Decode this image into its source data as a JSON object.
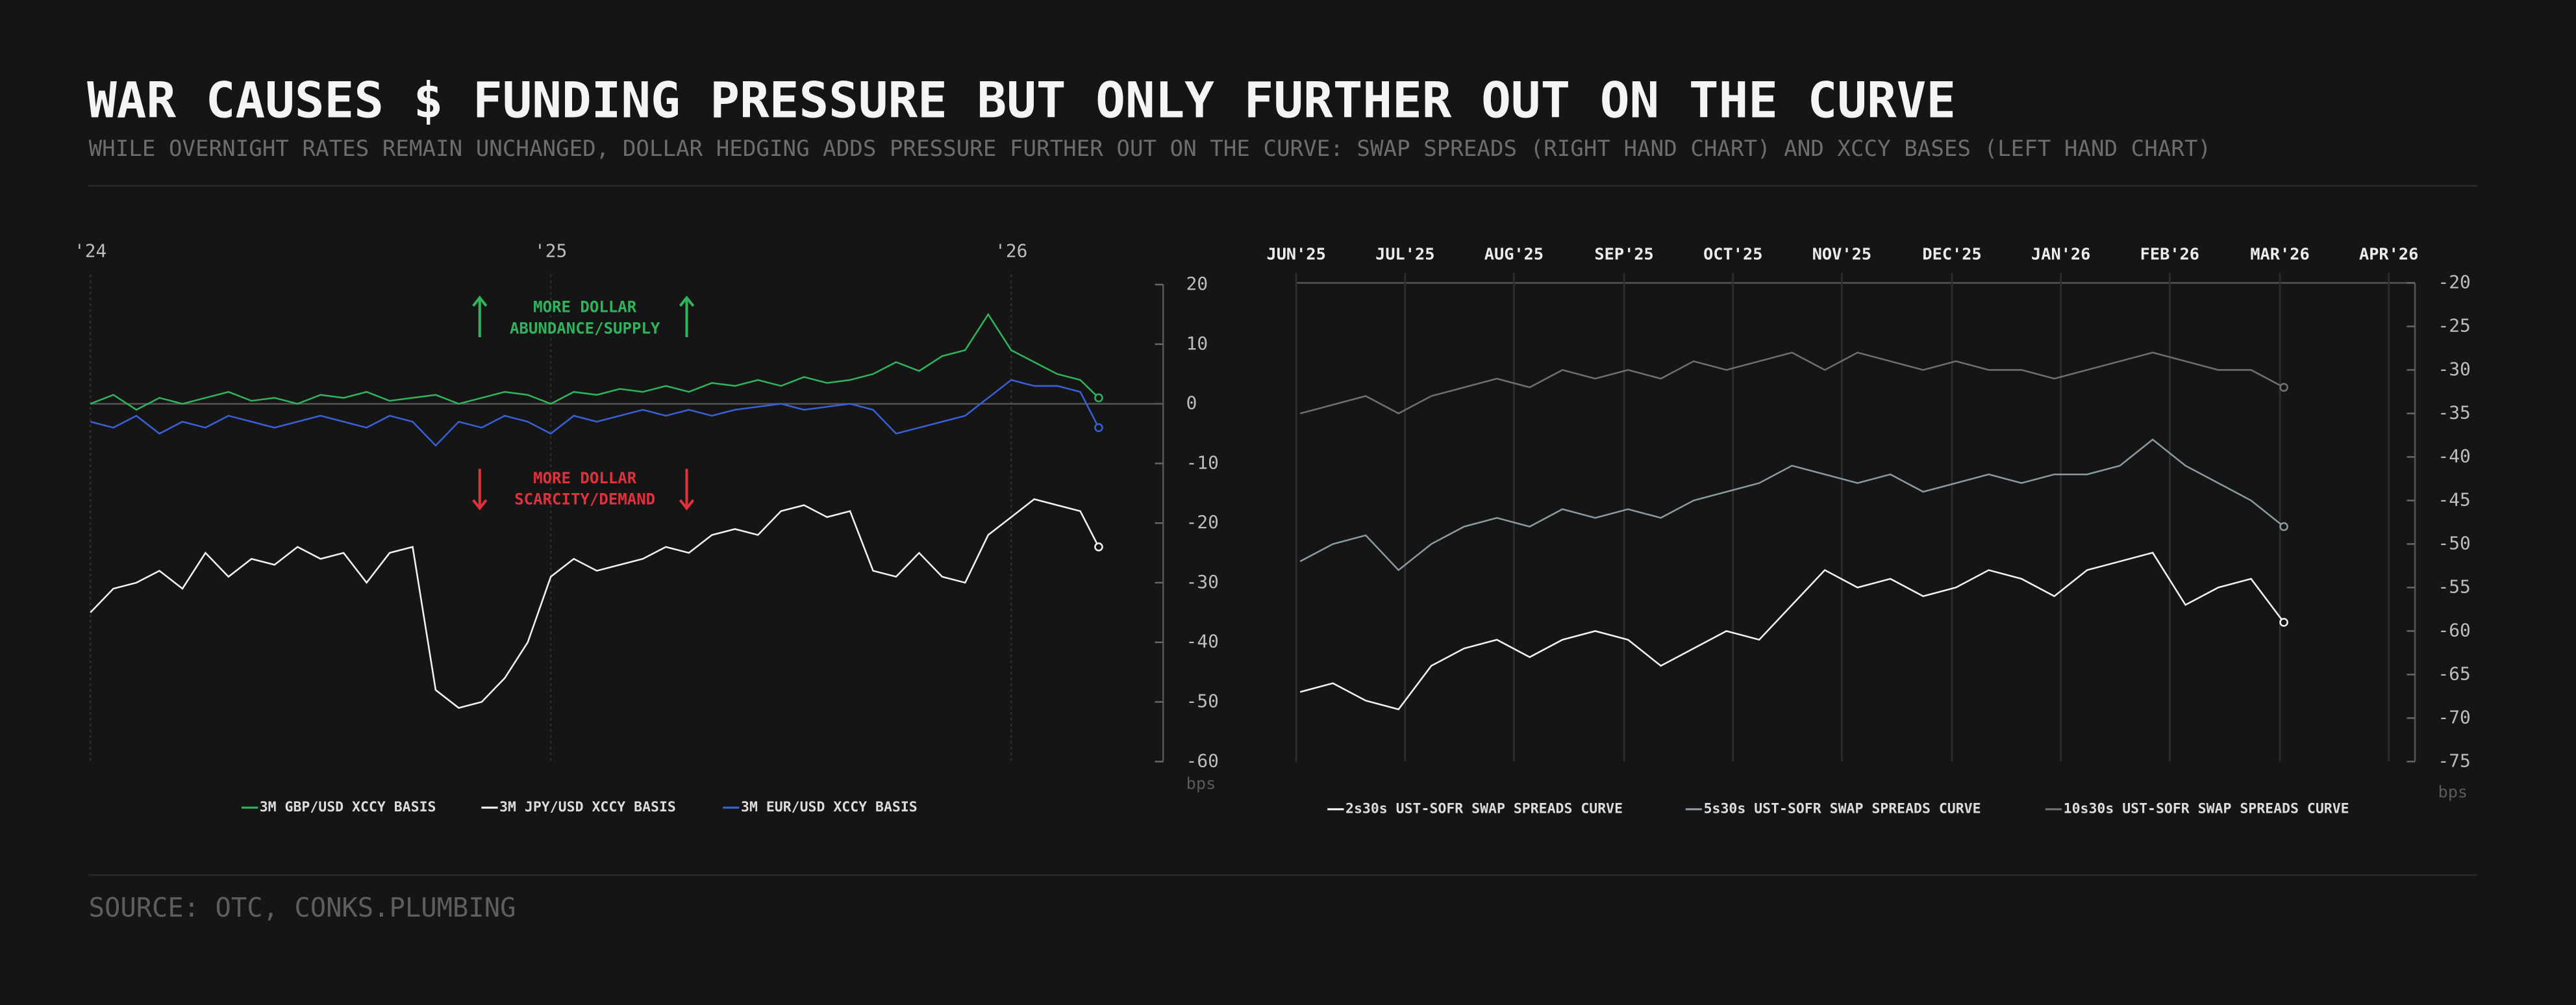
{
  "title": "WAR CAUSES $ FUNDING PRESSURE BUT ONLY FURTHER OUT ON THE CURVE",
  "subtitle": "WHILE OVERNIGHT RATES REMAIN UNCHANGED, DOLLAR HEDGING ADDS PRESSURE FURTHER OUT ON THE CURVE: SWAP SPREADS (RIGHT HAND CHART) AND XCCY BASES (LEFT HAND CHART)",
  "source": "SOURCE: OTC, CONKS.PLUMBING",
  "chart_data": [
    {
      "type": "line",
      "y_unit": "bps",
      "xlim": [
        2024,
        2026.33
      ],
      "xticks": [
        {
          "value": 2024,
          "label": "'24"
        },
        {
          "value": 2025,
          "label": "'25"
        },
        {
          "value": 2026,
          "label": "'26"
        }
      ],
      "ylim": [
        -60,
        20
      ],
      "yticks": [
        20,
        10,
        0,
        -10,
        -20,
        -30,
        -40,
        -50,
        -60
      ],
      "annotations": [
        {
          "text": [
            "MORE DOLLAR",
            "ABUNDANCE/SUPPLY"
          ],
          "color": "#2fb35c"
        },
        {
          "text": [
            "MORE DOLLAR",
            "SCARCITY/DEMAND"
          ],
          "color": "#e0323c"
        }
      ],
      "x": [
        2024.0,
        2024.05,
        2024.1,
        2024.15,
        2024.2,
        2024.25,
        2024.3,
        2024.35,
        2024.4,
        2024.45,
        2024.5,
        2024.55,
        2024.6,
        2024.65,
        2024.7,
        2024.75,
        2024.8,
        2024.85,
        2024.9,
        2024.95,
        2025.0,
        2025.05,
        2025.1,
        2025.15,
        2025.2,
        2025.25,
        2025.3,
        2025.35,
        2025.4,
        2025.45,
        2025.5,
        2025.55,
        2025.6,
        2025.65,
        2025.7,
        2025.75,
        2025.8,
        2025.85,
        2025.9,
        2025.95,
        2026.0,
        2026.05,
        2026.1,
        2026.15,
        2026.19
      ],
      "series": [
        {
          "name": "3M GBP/USD XCCY BASIS",
          "color": "#2fb35c",
          "values": [
            0,
            1.5,
            -1,
            1,
            0,
            1,
            2,
            0.5,
            1,
            0,
            1.5,
            1,
            2,
            0.5,
            1,
            1.5,
            0,
            1,
            2,
            1.5,
            0,
            2,
            1.5,
            2.5,
            2,
            3,
            2,
            3.5,
            3,
            4,
            3,
            4.5,
            3.5,
            4,
            5,
            7,
            5.5,
            8,
            9,
            15,
            9,
            7,
            5,
            4,
            1
          ]
        },
        {
          "name": "3M JPY/USD XCCY BASIS",
          "color": "#f2f2f2",
          "values": [
            -35,
            -31,
            -30,
            -28,
            -31,
            -25,
            -29,
            -26,
            -27,
            -24,
            -26,
            -25,
            -30,
            -25,
            -24,
            -48,
            -51,
            -50,
            -46,
            -40,
            -29,
            -26,
            -28,
            -27,
            -26,
            -24,
            -25,
            -22,
            -21,
            -22,
            -18,
            -17,
            -19,
            -18,
            -28,
            -29,
            -25,
            -29,
            -30,
            -22,
            -19,
            -16,
            -17,
            -18,
            -24
          ]
        },
        {
          "name": "3M EUR/USD XCCY BASIS",
          "color": "#3a5fd6",
          "values": [
            -3,
            -4,
            -2,
            -5,
            -3,
            -4,
            -2,
            -3,
            -4,
            -3,
            -2,
            -3,
            -4,
            -2,
            -3,
            -7,
            -3,
            -4,
            -2,
            -3,
            -5,
            -2,
            -3,
            -2,
            -1,
            -2,
            -1,
            -2,
            -1,
            -0.5,
            0,
            -1,
            -0.5,
            0,
            -1,
            -5,
            -4,
            -3,
            -2,
            1,
            4,
            3,
            3,
            2,
            -4
          ]
        }
      ]
    },
    {
      "type": "line",
      "y_unit": "bps",
      "xlim": [
        2025.417,
        2026.27
      ],
      "xticks": [
        {
          "value": 2025.417,
          "label": "JUN'25"
        },
        {
          "value": 2025.5,
          "label": "JUL'25"
        },
        {
          "value": 2025.583,
          "label": "AUG'25"
        },
        {
          "value": 2025.667,
          "label": "SEP'25"
        },
        {
          "value": 2025.75,
          "label": "OCT'25"
        },
        {
          "value": 2025.833,
          "label": "NOV'25"
        },
        {
          "value": 2025.917,
          "label": "DEC'25"
        },
        {
          "value": 2026,
          "label": "JAN'26"
        },
        {
          "value": 2026.083,
          "label": "FEB'26"
        },
        {
          "value": 2026.167,
          "label": "MAR'26"
        },
        {
          "value": 2026.25,
          "label": "APR'26"
        }
      ],
      "ylim": [
        -75,
        -20
      ],
      "yticks": [
        -20,
        -25,
        -30,
        -35,
        -40,
        -45,
        -50,
        -55,
        -60,
        -65,
        -70,
        -75
      ],
      "x": [
        2025.42,
        2025.445,
        2025.47,
        2025.495,
        2025.52,
        2025.545,
        2025.57,
        2025.595,
        2025.62,
        2025.645,
        2025.67,
        2025.695,
        2025.72,
        2025.745,
        2025.77,
        2025.795,
        2025.82,
        2025.845,
        2025.87,
        2025.895,
        2025.92,
        2025.945,
        2025.97,
        2025.995,
        2026.02,
        2026.045,
        2026.07,
        2026.095,
        2026.12,
        2026.145,
        2026.17
      ],
      "series": [
        {
          "name": "2s30s UST-SOFR SWAP SPREADS CURVE",
          "color": "#f2f2f2",
          "values": [
            -67,
            -66,
            -68,
            -69,
            -64,
            -62,
            -61,
            -63,
            -61,
            -60,
            -61,
            -64,
            -62,
            -60,
            -61,
            -57,
            -53,
            -55,
            -54,
            -56,
            -55,
            -53,
            -54,
            -56,
            -53,
            -52,
            -51,
            -57,
            -55,
            -54,
            -59
          ]
        },
        {
          "name": "5s30s UST-SOFR SWAP SPREADS CURVE",
          "color": "#8a9aa0",
          "values": [
            -52,
            -50,
            -49,
            -53,
            -50,
            -48,
            -47,
            -48,
            -46,
            -47,
            -46,
            -47,
            -45,
            -44,
            -43,
            -41,
            -42,
            -43,
            -42,
            -44,
            -43,
            -42,
            -43,
            -42,
            -42,
            -41,
            -38,
            -41,
            -43,
            -45,
            -48
          ]
        },
        {
          "name": "10s30s UST-SOFR SWAP SPREADS CURVE",
          "color": "#6f6f6f",
          "values": [
            -35,
            -34,
            -33,
            -35,
            -33,
            -32,
            -31,
            -32,
            -30,
            -31,
            -30,
            -31,
            -29,
            -30,
            -29,
            -28,
            -30,
            -28,
            -29,
            -30,
            -29,
            -30,
            -30,
            -31,
            -30,
            -29,
            -28,
            -29,
            -30,
            -30,
            -32
          ]
        }
      ]
    }
  ]
}
